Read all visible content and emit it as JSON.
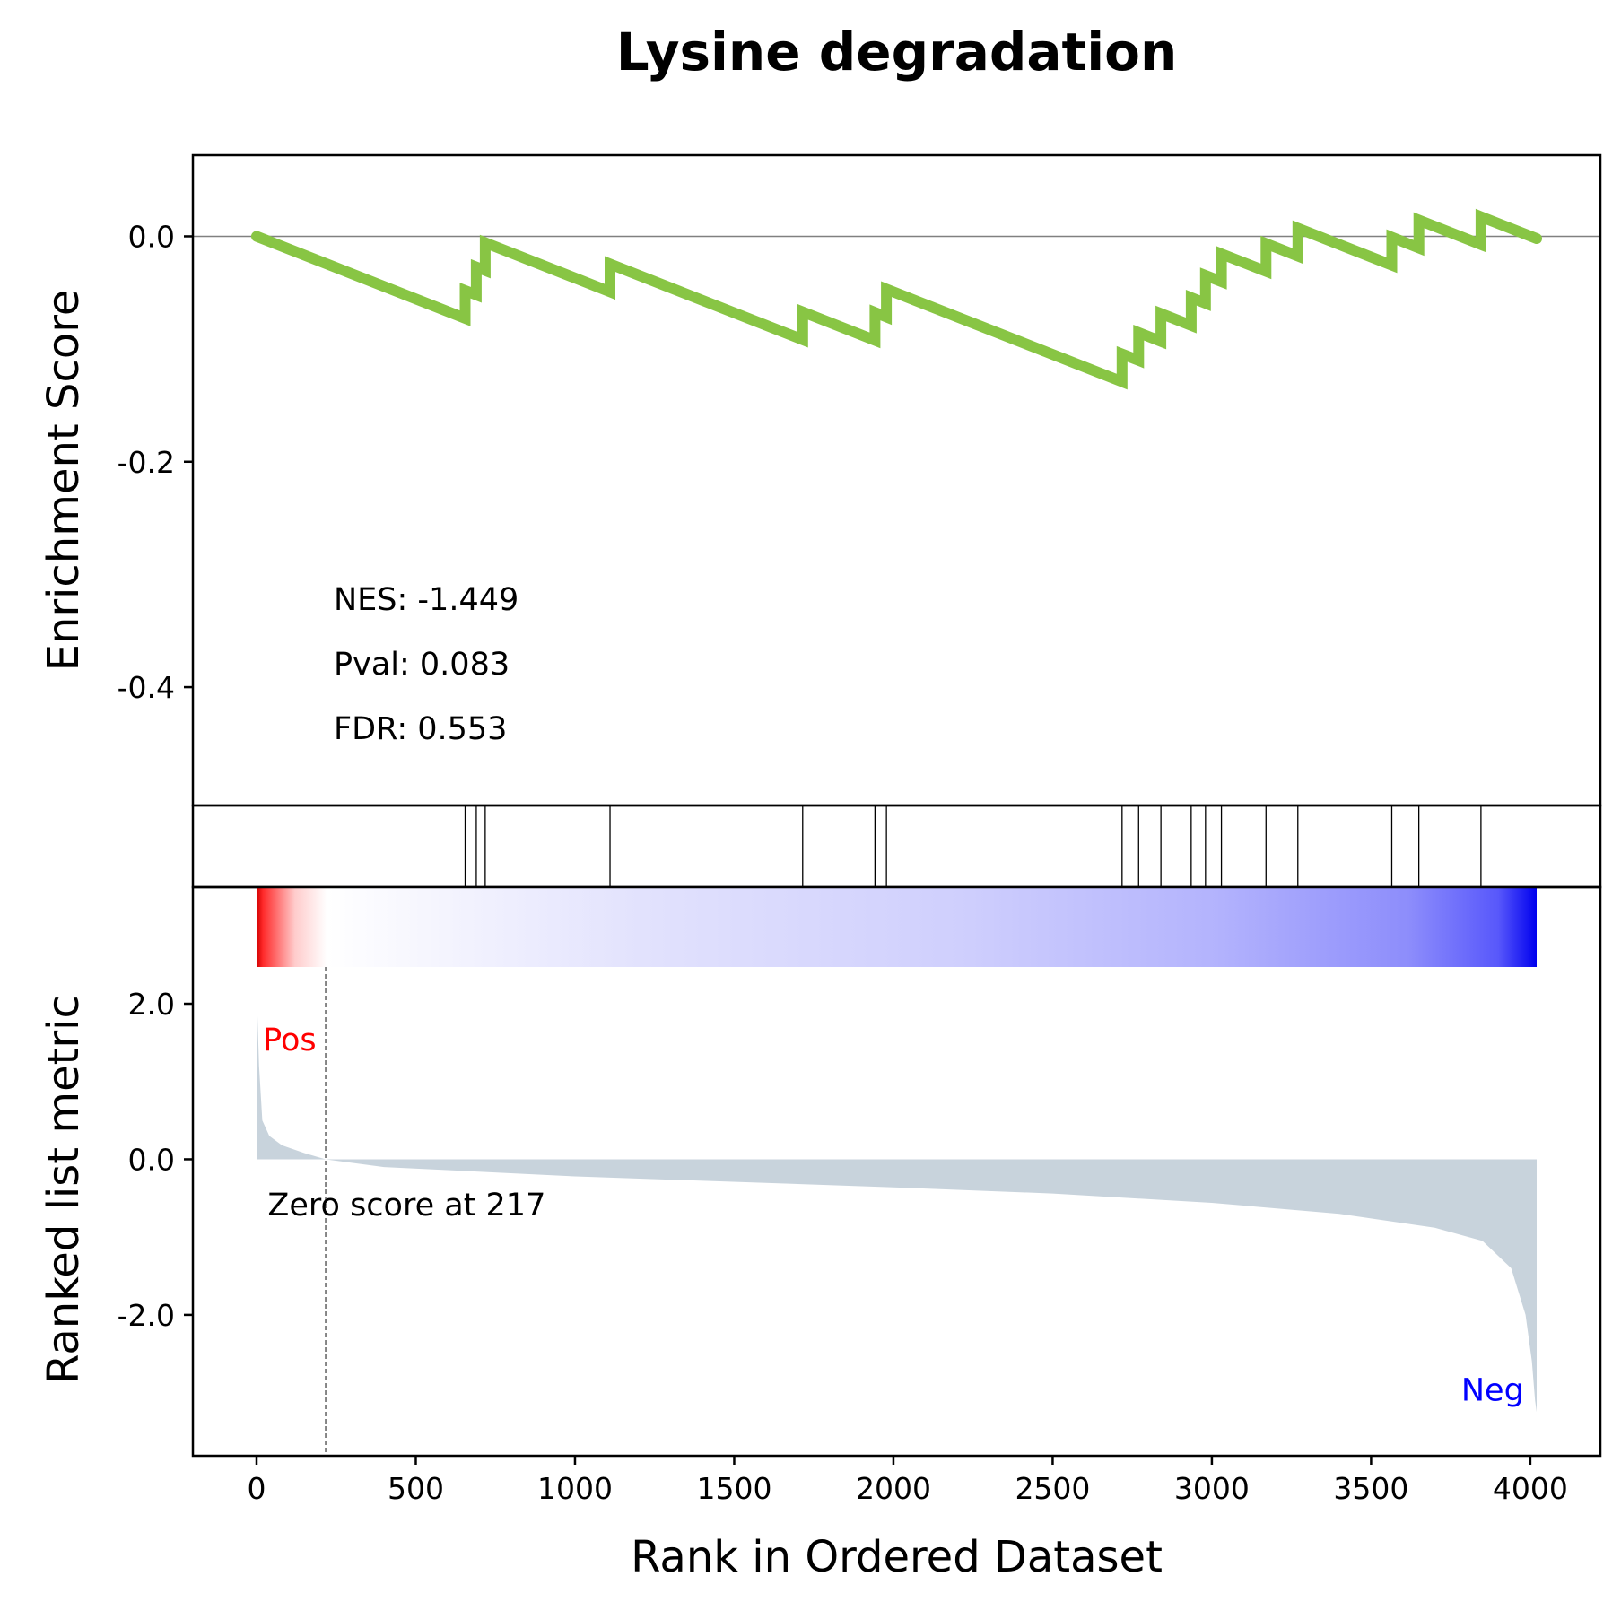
{
  "chart_data": {
    "type": "line",
    "title": "Lysine degradation",
    "xlabel": "Rank in Ordered Dataset",
    "xlim": [
      -200,
      4220
    ],
    "xticks": [
      0,
      500,
      1000,
      1500,
      2000,
      2500,
      3000,
      3500,
      4000
    ],
    "xtick_labels": [
      "0",
      "500",
      "1000",
      "1500",
      "2000",
      "2500",
      "3000",
      "3500",
      "4000"
    ],
    "enrichment": {
      "ylabel": "Enrichment Score",
      "ylim": [
        -0.505,
        0.072
      ],
      "yticks": [
        0.0,
        -0.2,
        -0.4
      ],
      "ytick_labels": [
        "0.0",
        "-0.2",
        "-0.4"
      ],
      "line_color": "#88c544",
      "hit_ranks": [
        655,
        690,
        718,
        1110,
        1715,
        1942,
        1978,
        2718,
        2770,
        2840,
        2935,
        2980,
        3030,
        3170,
        3270,
        3565,
        3650,
        3845
      ],
      "hit_gain": 0.0247,
      "start_rank": 0,
      "end_rank": 4020,
      "stats": {
        "nes": "NES: -1.449",
        "pval": "Pval: 0.083",
        "fdr": "FDR: 0.553"
      }
    },
    "ranked_metric": {
      "ylabel": "Ranked list metric",
      "ylim": [
        -3.65,
        2.3
      ],
      "yticks": [
        2.0,
        0.0,
        -2.0
      ],
      "ytick_labels": [
        "2.0",
        "0.0",
        "-2.0"
      ],
      "fill_color": "#c8d3dc",
      "profile": [
        [
          0,
          2.2
        ],
        [
          8,
          1.2
        ],
        [
          18,
          0.5
        ],
        [
          40,
          0.3
        ],
        [
          80,
          0.18
        ],
        [
          150,
          0.08
        ],
        [
          217,
          0.0
        ],
        [
          400,
          -0.1
        ],
        [
          1000,
          -0.22
        ],
        [
          2000,
          -0.36
        ],
        [
          2500,
          -0.44
        ],
        [
          3000,
          -0.56
        ],
        [
          3400,
          -0.7
        ],
        [
          3700,
          -0.88
        ],
        [
          3850,
          -1.05
        ],
        [
          3940,
          -1.4
        ],
        [
          3985,
          -2.0
        ],
        [
          4005,
          -2.6
        ],
        [
          4015,
          -3.1
        ],
        [
          4020,
          -3.25
        ]
      ],
      "zero_cross_rank": 217,
      "zero_label": "Zero score at 217",
      "pos_label": "Pos",
      "neg_label": "Neg",
      "pos_color": "#ff0000",
      "neg_color": "#0000ff"
    }
  }
}
